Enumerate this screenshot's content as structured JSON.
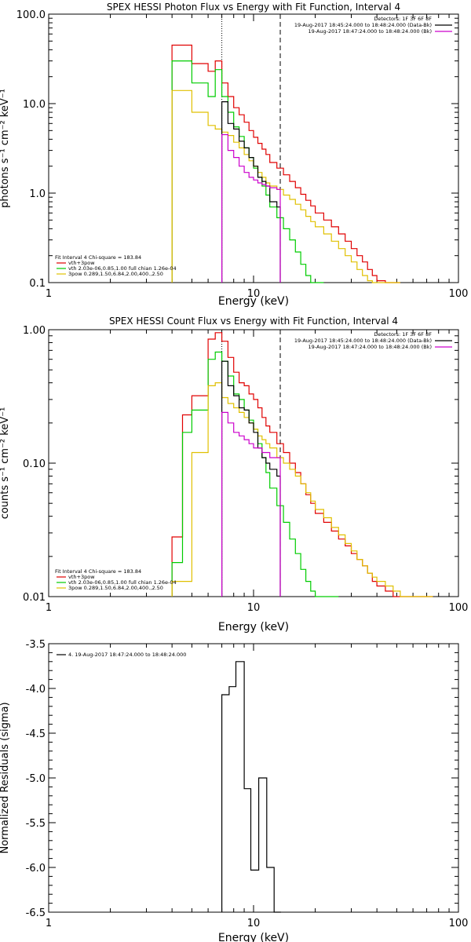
{
  "chart_data": [
    {
      "type": "line",
      "title": "SPEX HESSI Photon Flux vs Energy with Fit Function, Interval 4",
      "xlabel": "Energy (keV)",
      "ylabel": "photons s⁻¹ cm⁻² keV⁻¹",
      "xscale": "log",
      "yscale": "log",
      "xlim": [
        1,
        100
      ],
      "ylim": [
        0.1,
        100
      ],
      "x_ticks": [
        1,
        10,
        100
      ],
      "x_tick_labels": [
        "1",
        "10",
        "100"
      ],
      "y_ticks": [
        0.1,
        1,
        10,
        100
      ],
      "y_tick_labels": [
        "0.1",
        "1.0",
        "10.0",
        "100.0"
      ],
      "vlines": [
        {
          "x": 7.0,
          "style": "dotted"
        },
        {
          "x": 13.5,
          "style": "dashed"
        }
      ],
      "legend_right": {
        "lines": [
          {
            "text": "Detectors: 1F 3F 6F 8F",
            "color": ""
          },
          {
            "text": "19-Aug-2017 18:45:24.000 to 18:48:24.000 (Data-Bk)",
            "color": "#000000"
          },
          {
            "text": "19-Aug-2017 18:47:24.000 to 18:48:24.000 (Bk)",
            "color": "#cc00cc"
          }
        ]
      },
      "legend_left": {
        "lines": [
          {
            "text": "Fit Interval  4    Chi-square = 183.84",
            "color": ""
          },
          {
            "text": "vth+3pow",
            "color": "#e00000"
          },
          {
            "text": "vth  2.03e-06,0.85,1.00   full chian 1.26e-04",
            "color": "#00cc00"
          },
          {
            "text": "3pow  0.289,1.50,6.84,2.00,400.,2.50",
            "color": "#e0c000"
          }
        ]
      },
      "series": [
        {
          "color": "#e00000",
          "edges": [
            4.0,
            5.0,
            6.0,
            6.5,
            7.0,
            7.5,
            8.0,
            8.5,
            9.0,
            9.5,
            10.0,
            10.5,
            11.0,
            11.5,
            12.0,
            13.0,
            14.0,
            15.0,
            16.0,
            17.0,
            18.0,
            19.0,
            20.0,
            22.0,
            24.0,
            26.0,
            28.0,
            30.0,
            32.0,
            34.0,
            36.0,
            38.0,
            40.0,
            44.0,
            48.0,
            52.0
          ],
          "values": [
            45.0,
            28.0,
            23.0,
            30.0,
            17.0,
            12.0,
            9.0,
            7.5,
            6.2,
            5.0,
            4.2,
            3.6,
            3.1,
            2.7,
            2.2,
            1.9,
            1.6,
            1.35,
            1.15,
            0.97,
            0.83,
            0.72,
            0.6,
            0.5,
            0.42,
            0.35,
            0.29,
            0.24,
            0.2,
            0.17,
            0.14,
            0.12,
            0.105,
            0.1,
            0.1
          ]
        },
        {
          "color": "#00cc00",
          "edges": [
            4.0,
            5.0,
            6.0,
            6.5,
            7.0,
            7.5,
            8.0,
            8.5,
            9.0,
            9.5,
            10.0,
            10.5,
            11.0,
            11.5,
            12.0,
            13.0,
            14.0,
            15.0,
            16.0,
            17.0,
            18.0,
            19.0,
            20.0,
            22.0
          ],
          "values": [
            30.0,
            17.0,
            12.0,
            24.0,
            12.0,
            8.0,
            5.5,
            4.3,
            3.2,
            2.5,
            1.9,
            1.5,
            1.2,
            0.95,
            0.7,
            0.53,
            0.4,
            0.3,
            0.22,
            0.16,
            0.12,
            0.1,
            0.1
          ]
        },
        {
          "color": "#e0c000",
          "edges": [
            4.0,
            5.0,
            6.0,
            6.5,
            7.0,
            7.5,
            8.0,
            8.5,
            9.0,
            9.5,
            10.0,
            10.5,
            11.0,
            11.5,
            12.0,
            13.0,
            14.0,
            15.0,
            16.0,
            17.0,
            18.0,
            19.0,
            20.0,
            22.0,
            24.0,
            26.0,
            28.0,
            30.0,
            32.0,
            34.0,
            36.0,
            38.0,
            40.0,
            44.0,
            48.0,
            52.0
          ],
          "values": [
            14.0,
            8.0,
            5.7,
            5.2,
            4.8,
            4.4,
            3.7,
            3.2,
            2.7,
            2.3,
            2.0,
            1.7,
            1.5,
            1.3,
            1.2,
            1.1,
            0.95,
            0.85,
            0.75,
            0.65,
            0.55,
            0.48,
            0.42,
            0.35,
            0.29,
            0.24,
            0.2,
            0.17,
            0.14,
            0.12,
            0.105,
            0.1,
            0.1,
            0.1,
            0.1
          ]
        },
        {
          "color": "#000000",
          "edges": [
            7.0,
            7.5,
            8.0,
            8.5,
            9.0,
            9.5,
            10.0,
            10.5,
            11.0,
            11.5,
            12.0,
            13.0,
            13.5
          ],
          "values": [
            10.5,
            6.0,
            5.2,
            3.8,
            3.2,
            2.5,
            2.0,
            1.5,
            1.35,
            1.2,
            0.8,
            0.7
          ]
        },
        {
          "color": "#cc00cc",
          "edges": [
            7.0,
            7.5,
            8.0,
            8.5,
            9.0,
            9.5,
            10.0,
            10.5,
            11.0,
            11.5,
            12.0,
            13.0,
            13.5
          ],
          "values": [
            4.5,
            3.0,
            2.5,
            2.0,
            1.7,
            1.5,
            1.4,
            1.3,
            1.25,
            1.2,
            1.15,
            1.1
          ]
        }
      ]
    },
    {
      "type": "line",
      "title": "SPEX HESSI Count Flux vs Energy with Fit Function, Interval 4",
      "xlabel": "Energy (keV)",
      "ylabel": "counts s⁻¹ cm⁻² keV⁻¹",
      "xscale": "log",
      "yscale": "log",
      "xlim": [
        1,
        100
      ],
      "ylim": [
        0.01,
        1
      ],
      "x_ticks": [
        1,
        10,
        100
      ],
      "x_tick_labels": [
        "1",
        "10",
        "100"
      ],
      "y_ticks": [
        0.01,
        0.1,
        1
      ],
      "y_tick_labels": [
        "0.01",
        "0.10",
        "1.00"
      ],
      "vlines": [
        {
          "x": 7.0,
          "style": "dotted"
        },
        {
          "x": 13.5,
          "style": "dashed"
        }
      ],
      "legend_right": {
        "lines": [
          {
            "text": "Detectors: 1F 3F 6F 8F",
            "color": ""
          },
          {
            "text": "19-Aug-2017 18:45:24.000 to 18:48:24.000 (Data-Bk)",
            "color": "#000000"
          },
          {
            "text": "19-Aug-2017 18:47:24.000 to 18:48:24.000 (Bk)",
            "color": "#cc00cc"
          }
        ]
      },
      "legend_left": {
        "lines": [
          {
            "text": "Fit Interval  4    Chi-square = 183.84",
            "color": ""
          },
          {
            "text": "vth+3pow",
            "color": "#e00000"
          },
          {
            "text": "vth  2.03e-06,0.85,1.00   full chian 1.26e-04",
            "color": "#00cc00"
          },
          {
            "text": "3pow  0.289,1.50,6.84,2.00,400.,2.50",
            "color": "#e0c000"
          }
        ]
      },
      "series": [
        {
          "color": "#e00000",
          "edges": [
            4.0,
            4.5,
            5.0,
            6.0,
            6.5,
            7.0,
            7.5,
            8.0,
            8.5,
            9.0,
            9.5,
            10.0,
            10.5,
            11.0,
            11.5,
            12.0,
            13.0,
            14.0,
            15.0,
            16.0,
            17.0,
            18.0,
            19.0,
            20.0,
            22.0,
            24.0,
            26.0,
            28.0,
            30.0,
            32.0,
            34.0,
            36.0,
            38.0,
            40.0,
            44.0,
            48.0,
            52.0,
            56.0,
            60.0,
            65.0,
            70.0,
            75.0
          ],
          "values": [
            0.028,
            0.23,
            0.32,
            0.85,
            0.95,
            0.82,
            0.62,
            0.48,
            0.4,
            0.38,
            0.33,
            0.3,
            0.26,
            0.22,
            0.19,
            0.17,
            0.14,
            0.12,
            0.1,
            0.085,
            0.07,
            0.058,
            0.05,
            0.042,
            0.036,
            0.031,
            0.027,
            0.024,
            0.021,
            0.019,
            0.017,
            0.015,
            0.013,
            0.012,
            0.011,
            0.01,
            0.01,
            0.01,
            0.01,
            0.01,
            0.01
          ]
        },
        {
          "color": "#00cc00",
          "edges": [
            4.0,
            4.5,
            5.0,
            6.0,
            6.5,
            7.0,
            7.5,
            8.0,
            8.5,
            9.0,
            9.5,
            10.0,
            10.5,
            11.0,
            11.5,
            12.0,
            13.0,
            14.0,
            15.0,
            16.0,
            17.0,
            18.0,
            19.0,
            20.0,
            22.0,
            24.0,
            26.0
          ],
          "values": [
            0.018,
            0.17,
            0.25,
            0.6,
            0.68,
            0.58,
            0.45,
            0.33,
            0.3,
            0.25,
            0.21,
            0.18,
            0.14,
            0.11,
            0.085,
            0.065,
            0.048,
            0.036,
            0.027,
            0.021,
            0.016,
            0.013,
            0.011,
            0.01,
            0.01,
            0.01
          ]
        },
        {
          "color": "#e0c000",
          "edges": [
            4.0,
            5.0,
            6.0,
            6.5,
            7.0,
            7.5,
            8.0,
            8.5,
            9.0,
            9.5,
            10.0,
            10.5,
            11.0,
            11.5,
            12.0,
            13.0,
            14.0,
            15.0,
            16.0,
            17.0,
            18.0,
            19.0,
            20.0,
            22.0,
            24.0,
            26.0,
            28.0,
            30.0,
            32.0,
            34.0,
            36.0,
            38.0,
            40.0,
            44.0,
            48.0,
            52.0,
            56.0,
            60.0,
            65.0,
            70.0,
            75.0
          ],
          "values": [
            0.013,
            0.12,
            0.38,
            0.4,
            0.31,
            0.28,
            0.26,
            0.24,
            0.22,
            0.2,
            0.18,
            0.16,
            0.15,
            0.14,
            0.13,
            0.11,
            0.1,
            0.09,
            0.08,
            0.07,
            0.06,
            0.052,
            0.045,
            0.039,
            0.033,
            0.029,
            0.025,
            0.022,
            0.019,
            0.017,
            0.015,
            0.014,
            0.013,
            0.012,
            0.011,
            0.01,
            0.01,
            0.01,
            0.01,
            0.01
          ]
        },
        {
          "color": "#000000",
          "edges": [
            7.0,
            7.5,
            8.0,
            8.5,
            9.0,
            9.5,
            10.0,
            10.5,
            11.0,
            11.5,
            12.0,
            13.0,
            13.5
          ],
          "values": [
            0.58,
            0.38,
            0.32,
            0.26,
            0.25,
            0.2,
            0.17,
            0.13,
            0.11,
            0.1,
            0.09,
            0.08
          ]
        },
        {
          "color": "#cc00cc",
          "edges": [
            7.0,
            7.5,
            8.0,
            8.5,
            9.0,
            9.5,
            10.0,
            10.5,
            11.0,
            11.5,
            12.0,
            13.0,
            13.5
          ],
          "values": [
            0.24,
            0.2,
            0.17,
            0.16,
            0.15,
            0.14,
            0.13,
            0.13,
            0.12,
            0.12,
            0.11,
            0.11
          ]
        }
      ]
    },
    {
      "type": "line",
      "title": "",
      "xlabel": "Energy (keV)",
      "ylabel": "Normalized Residuals (sigma)",
      "xscale": "log",
      "yscale": "linear",
      "xlim": [
        1,
        100
      ],
      "ylim": [
        -6.5,
        -3.5
      ],
      "x_ticks": [
        1,
        10,
        100
      ],
      "x_tick_labels": [
        "1",
        "10",
        "100"
      ],
      "y_ticks": [
        -6.5,
        -6.0,
        -5.5,
        -5.0,
        -4.5,
        -4.0,
        -3.5
      ],
      "y_tick_labels": [
        "-6.5",
        "-6.0",
        "-5.5",
        "-5.0",
        "-4.5",
        "-4.0",
        "-3.5"
      ],
      "legend_left": {
        "lines": [
          {
            "text": "4. 19-Aug-2017 18:47:24.000 to 18:48:24.000",
            "color": "#000000"
          }
        ]
      },
      "series": [
        {
          "color": "#000000",
          "edges": [
            7.0,
            7.6,
            8.2,
            9.0,
            9.7,
            10.6,
            11.6,
            12.6,
            13.6
          ],
          "values": [
            -4.07,
            -3.98,
            -3.7,
            -5.12,
            -6.03,
            -5.0,
            -6.0,
            -6.5
          ]
        }
      ]
    }
  ]
}
